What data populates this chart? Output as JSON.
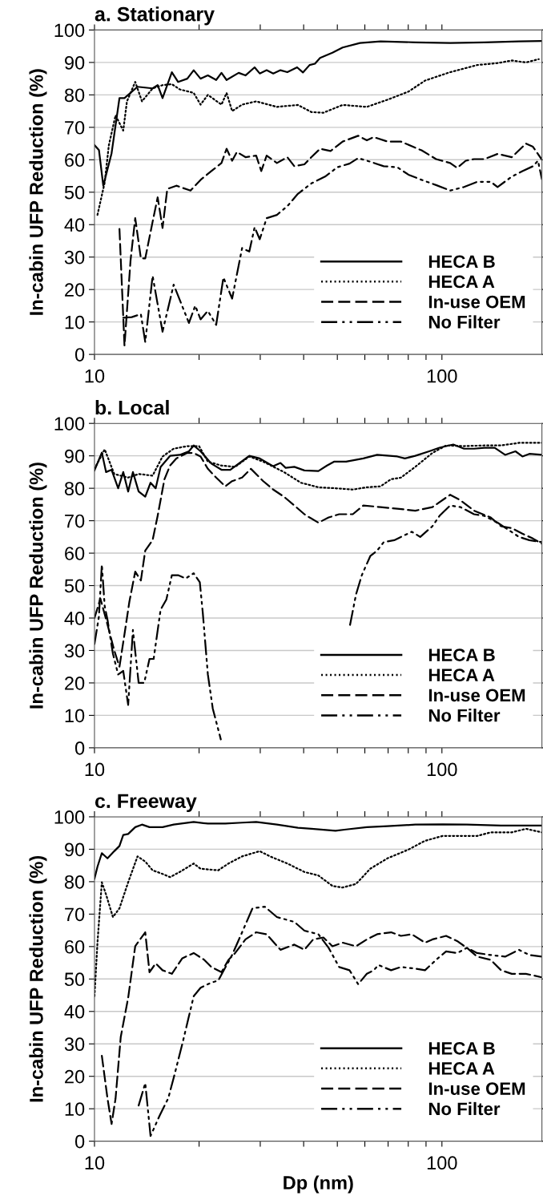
{
  "chart_data": [
    {
      "type": "line",
      "title": "a. Stationary",
      "ylabel": "In-cabin UFP Reduction (%)",
      "log": "x",
      "xlim": [
        10,
        194
      ],
      "ylim": [
        0,
        100
      ],
      "xticks": [
        10,
        {
          "value": 20,
          "label": null
        },
        {
          "value": 30,
          "label": null
        },
        {
          "value": 40,
          "label": null
        },
        {
          "value": 50,
          "label": null
        },
        {
          "value": 60,
          "label": null
        },
        {
          "value": 70,
          "label": null
        },
        {
          "value": 80,
          "label": null
        },
        {
          "value": 90,
          "label": null
        },
        100
      ],
      "yticks": [
        0,
        10,
        20,
        30,
        40,
        50,
        60,
        70,
        80,
        90,
        100
      ],
      "grid": "y",
      "legend": "bottom right",
      "series": [
        {
          "name": "HECA B",
          "color": "#000000",
          "line_style": "solid",
          "x": [
            10.0,
            10.3,
            10.6,
            11.2,
            11.8,
            12.2,
            13.3,
            14.7,
            15.2,
            15.7,
            16.7,
            17.4,
            18.5,
            19.3,
            20.2,
            21.2,
            22.4,
            23.2,
            24.0,
            26.0,
            27.2,
            28.9,
            29.9,
            31.3,
            32.7,
            34.3,
            35.9,
            38.3,
            39.8,
            41.6,
            43.1,
            44.6,
            48.4,
            51.8,
            58.1,
            66.6,
            83.8,
            105.6,
            132.5,
            166.6,
            194
          ],
          "values": [
            64.5,
            63,
            52,
            62,
            79,
            79,
            82.5,
            82,
            83,
            79,
            87,
            84,
            85,
            87.6,
            85,
            86,
            84.6,
            86.8,
            84.6,
            86.8,
            86,
            88.5,
            86.6,
            87.6,
            86.6,
            87.6,
            87,
            88.5,
            86.9,
            89.2,
            89.6,
            91.4,
            93,
            94.6,
            96,
            96.5,
            96.2,
            96,
            96.2,
            96.5,
            96.6
          ]
        },
        {
          "name": "HECA A",
          "color": "#000000",
          "line_style": "dotted",
          "x": [
            10.2,
            10.7,
            11.0,
            11.5,
            12.1,
            12.4,
            13.1,
            13.7,
            14.7,
            15.7,
            16.7,
            17.6,
            19.3,
            20.2,
            21.2,
            23.2,
            24.0,
            24.9,
            26.6,
            29.2,
            33.5,
            38.5,
            42.1,
            45.6,
            51.8,
            60.8,
            69.7,
            80.1,
            89.4,
            105.6,
            126.3,
            144.6,
            158.9,
            174.5,
            190
          ],
          "values": [
            43,
            53,
            64.5,
            73.7,
            69,
            78,
            84,
            78,
            82,
            83,
            83.3,
            81.7,
            80.6,
            77,
            80,
            77,
            80.6,
            75,
            77,
            78,
            76.3,
            76.9,
            74.7,
            74.5,
            76.9,
            76.3,
            78.5,
            81,
            84.4,
            87,
            89.2,
            89.8,
            90.6,
            90,
            91
          ]
        },
        {
          "name": "In-use OEM",
          "color": "#000000",
          "line_style": "dashed",
          "x": [
            11.8,
            12.2,
            12.7,
            13.1,
            13.6,
            14.0,
            14.7,
            15.2,
            15.7,
            16.2,
            17.2,
            18.9,
            20.2,
            21.7,
            23.2,
            24.0,
            24.9,
            25.7,
            27.2,
            29.2,
            30.2,
            31.3,
            33.5,
            35.9,
            37.6,
            40.2,
            42.1,
            44.6,
            47.8,
            51.8,
            57.4,
            60.8,
            63.6,
            69.7,
            76.2,
            87.4,
            96.2,
            105.6,
            110.6,
            117.1,
            123.7,
            132.5,
            144.6,
            158.9,
            174.5,
            182.8,
            194
          ],
          "values": [
            38.7,
            2.7,
            29,
            42,
            29.6,
            29.6,
            40.9,
            48.4,
            39,
            51,
            52,
            50.5,
            53.8,
            56.5,
            59,
            63.4,
            59.7,
            62.4,
            60.8,
            61.3,
            56.5,
            61.3,
            59,
            60.8,
            58,
            58.6,
            60.8,
            63.4,
            62.7,
            65.6,
            67.4,
            66,
            67,
            65.6,
            65.6,
            62.9,
            60.2,
            59,
            57.5,
            59.7,
            60.2,
            60.2,
            61.8,
            60.8,
            65,
            64,
            60
          ]
        },
        {
          "name": "No Filter",
          "color": "#000000",
          "line_style": "dashdotdot",
          "x": [
            12.1,
            12.8,
            13.6,
            14.0,
            14.7,
            15.7,
            16.9,
            18.7,
            19.5,
            20.2,
            21.2,
            22.4,
            23.5,
            24.9,
            26.6,
            27.9,
            28.9,
            29.9,
            31.3,
            33.5,
            35.9,
            38.5,
            42.1,
            46.1,
            50.0,
            54.2,
            57.4,
            62.2,
            68.0,
            74.4,
            80.1,
            87.4,
            96.2,
            105.6,
            115.8,
            126.3,
            138.2,
            144.6,
            158.9,
            170.5,
            182.8,
            189,
            194
          ],
          "values": [
            11.3,
            11.5,
            12.4,
            3.8,
            24.2,
            7,
            21.5,
            9.7,
            15,
            10.8,
            13.4,
            9.1,
            23.7,
            17.2,
            32.8,
            31.7,
            39.2,
            35.5,
            42,
            43,
            45.7,
            49.5,
            52.7,
            54.8,
            57.7,
            58.8,
            60.5,
            59.4,
            58,
            57.7,
            55.4,
            53.8,
            52.2,
            50.5,
            51.6,
            53.2,
            53.2,
            51.6,
            54.8,
            56.5,
            58,
            59.7,
            54
          ]
        }
      ]
    },
    {
      "type": "line",
      "title": "b. Local",
      "ylabel": "In-cabin UFP Reduction (%)",
      "log": "x",
      "xlim": [
        10,
        194
      ],
      "ylim": [
        0,
        100
      ],
      "xticks": [
        10,
        {
          "value": 20,
          "label": null
        },
        {
          "value": 30,
          "label": null
        },
        {
          "value": 40,
          "label": null
        },
        {
          "value": 50,
          "label": null
        },
        {
          "value": 60,
          "label": null
        },
        {
          "value": 70,
          "label": null
        },
        {
          "value": 80,
          "label": null
        },
        {
          "value": 90,
          "label": null
        },
        100
      ],
      "yticks": [
        0,
        10,
        20,
        30,
        40,
        50,
        60,
        70,
        80,
        90,
        100
      ],
      "grid": "y",
      "legend": "bottom right",
      "series": [
        {
          "name": "HECA B",
          "color": "#000000",
          "line_style": "solid",
          "x": [
            10.0,
            10.5,
            10.8,
            11.2,
            11.7,
            12.1,
            12.5,
            12.9,
            13.4,
            14.0,
            14.5,
            15.0,
            15.5,
            16.5,
            17.6,
            18.7,
            19.3,
            20.2,
            21.7,
            23.2,
            24.6,
            26.0,
            27.9,
            29.9,
            32.7,
            34.3,
            35.5,
            37.6,
            40.2,
            44.1,
            46.7,
            48.9,
            53.0,
            59.4,
            65.1,
            74.4,
            78.2,
            83.8,
            91.9,
            98.4,
            107.8,
            115.8,
            123.7,
            132.5,
            141.9,
            152,
            162.8,
            170.5,
            178.5,
            194
          ],
          "values": [
            85.5,
            91,
            85,
            85.7,
            80,
            85,
            79,
            85,
            79,
            77.4,
            81.7,
            80,
            86.6,
            90,
            90.3,
            91.4,
            93.2,
            91.4,
            87.6,
            85.7,
            85.7,
            87.6,
            90,
            89.2,
            86.8,
            87.8,
            86.3,
            86.6,
            85.5,
            85.3,
            87,
            88.2,
            88.2,
            89.2,
            90.3,
            89.8,
            89.2,
            90,
            91.4,
            92.5,
            93.5,
            92.2,
            92.2,
            92.5,
            92.5,
            90.3,
            91.4,
            89.8,
            90.6,
            90.3
          ]
        },
        {
          "name": "HECA A",
          "color": "#000000",
          "line_style": "dotted",
          "x": [
            10.0,
            10.7,
            11.4,
            12.5,
            13.4,
            14.7,
            15.7,
            16.9,
            18.5,
            20.0,
            21.2,
            23.2,
            25.4,
            27.9,
            30.6,
            35.1,
            39.3,
            44.1,
            49.4,
            55.4,
            60.8,
            66.6,
            71.4,
            76.2,
            83.8,
            93.9,
            102.8,
            115.8,
            132.5,
            148,
            166.6,
            194
          ],
          "values": [
            86,
            92,
            84.4,
            83.3,
            84.4,
            83.9,
            89.8,
            92.2,
            93,
            93,
            88.2,
            87,
            86.6,
            89.8,
            88.2,
            85,
            81.7,
            80.3,
            80,
            79.6,
            80.3,
            80.6,
            82.8,
            83.3,
            86.6,
            90.9,
            93.2,
            93,
            93.2,
            93.2,
            94,
            94
          ]
        },
        {
          "name": "In-use OEM",
          "color": "#000000",
          "line_style": "dashed",
          "x": [
            10.0,
            10.4,
            10.9,
            11.4,
            11.8,
            12.2,
            12.6,
            13.1,
            13.6,
            14.0,
            14.7,
            15.2,
            15.9,
            16.5,
            17.2,
            18.5,
            19.3,
            20.2,
            21.2,
            22.4,
            23.8,
            24.9,
            26.6,
            28.2,
            30.6,
            32.7,
            35.1,
            37.6,
            40.2,
            41.6,
            44.1,
            47.2,
            50.6,
            55.4,
            59.4,
            66.6,
            74.4,
            83.8,
            93.9,
            105.6,
            113.1,
            123.7,
            138.2,
            148,
            158.9,
            170.5,
            182.8,
            194
          ],
          "values": [
            40,
            46,
            38,
            30,
            25,
            35,
            45,
            54.3,
            51.6,
            60.8,
            64,
            71.5,
            82.8,
            87,
            89.2,
            90.9,
            90.9,
            89.8,
            86,
            83.3,
            80.6,
            82.2,
            83.3,
            86,
            82.2,
            79.6,
            77.4,
            74.7,
            72,
            71,
            69.4,
            71,
            72,
            72,
            74.7,
            74.2,
            73.7,
            73.1,
            74.2,
            78,
            76.3,
            73.1,
            71,
            68.3,
            67.7,
            66,
            64.5,
            62.9
          ]
        },
        {
          "name": "No Filter",
          "color": "#000000",
          "line_style": "dashdotdot",
          "x": [
            10.0,
            10.3,
            10.5,
            10.7,
            10.9,
            11.3,
            11.7,
            12.1,
            12.5,
            12.9,
            13.4,
            13.9,
            14.4,
            14.8,
            15.5,
            16.1,
            16.7,
            17.4,
            18.3,
            19.3,
            20.1,
            20.5,
            21.2,
            21.9,
            23.1,
            35,
            54.4,
            56.6,
            58.8,
            62.2,
            65.1,
            68.0,
            72.9,
            81.9,
            86.6,
            93.9,
            98.4,
            105.6,
            113.1,
            123.7,
            132.5,
            144.6,
            155.3,
            166.6,
            178.5,
            194
          ],
          "values": [
            32,
            40.5,
            56.5,
            43.7,
            39.5,
            29,
            22.6,
            23.7,
            13.2,
            36.3,
            20,
            20,
            27.4,
            27.4,
            42.6,
            45.7,
            53.2,
            53.2,
            52.2,
            53.8,
            51,
            41.6,
            22.6,
            12.1,
            2.6,
            null,
            37.9,
            47.3,
            53.2,
            59.1,
            60.8,
            63.4,
            64,
            66.6,
            65,
            68.3,
            71.5,
            74.7,
            74.2,
            72,
            71.5,
            69.4,
            67.2,
            65,
            64,
            63.4
          ]
        }
      ]
    },
    {
      "type": "line",
      "title": "c. Freeway",
      "ylabel": "In-cabin UFP Reduction (%)",
      "xlabel": "Dp (nm)",
      "log": "x",
      "xlim": [
        10,
        194
      ],
      "ylim": [
        0,
        100
      ],
      "xticks": [
        10,
        {
          "value": 20,
          "label": null
        },
        {
          "value": 30,
          "label": null
        },
        {
          "value": 40,
          "label": null
        },
        {
          "value": 50,
          "label": null
        },
        {
          "value": 60,
          "label": null
        },
        {
          "value": 70,
          "label": null
        },
        {
          "value": 80,
          "label": null
        },
        {
          "value": 90,
          "label": null
        },
        100
      ],
      "yticks": [
        0,
        10,
        20,
        30,
        40,
        50,
        60,
        70,
        80,
        90,
        100
      ],
      "grid": "y",
      "legend": "bottom right",
      "series": [
        {
          "name": "HECA B",
          "color": "#000000",
          "line_style": "solid",
          "x": [
            10.0,
            10.2,
            10.5,
            10.9,
            11.4,
            11.8,
            12.1,
            12.5,
            13.1,
            13.7,
            14.4,
            15.7,
            16.9,
            19.3,
            21.2,
            23.8,
            26.6,
            29.2,
            33.5,
            38.5,
            42.1,
            49.4,
            53.0,
            60.8,
            69.7,
            83.8,
            100.5,
            118,
            148,
            194
          ],
          "values": [
            80.9,
            84.6,
            88.8,
            87.2,
            89.4,
            91,
            94.4,
            94.7,
            96.8,
            97.6,
            96.8,
            96.8,
            97.6,
            98.4,
            97.9,
            97.9,
            98.2,
            98.4,
            97.6,
            96.6,
            96.3,
            95.7,
            96.1,
            96.8,
            97.1,
            97.6,
            97.7,
            97.6,
            97.3,
            97.3
          ]
        },
        {
          "name": "HECA A",
          "color": "#000000",
          "line_style": "dotted",
          "x": [
            10.0,
            10.2,
            10.5,
            10.8,
            11.3,
            11.8,
            12.5,
            13.3,
            14.0,
            14.7,
            15.7,
            16.5,
            17.6,
            19.3,
            20.2,
            22.7,
            24.3,
            26.6,
            29.9,
            32.0,
            35.9,
            40.2,
            44.1,
            48.4,
            51.8,
            56.6,
            62.2,
            69.7,
            80.1,
            89.4,
            100.5,
            113.1,
            126.3,
            138.2,
            158.9,
            174.5,
            194
          ],
          "values": [
            44.7,
            61.2,
            79.8,
            76,
            69.1,
            71.8,
            79.8,
            87.8,
            86.2,
            83.5,
            82.4,
            81.4,
            83,
            85.6,
            84,
            83.5,
            85.6,
            87.8,
            89.4,
            87.8,
            85.6,
            83,
            81.9,
            78.7,
            78.2,
            79.3,
            84,
            87.2,
            89.9,
            92.6,
            94.1,
            94.1,
            94.1,
            95.2,
            95.2,
            96.3,
            95.2
          ]
        },
        {
          "name": "In-use OEM",
          "color": "#000000",
          "line_style": "dashed",
          "x": [
            10.5,
            10.9,
            11.2,
            11.5,
            11.9,
            12.5,
            13.1,
            14.0,
            14.4,
            15.0,
            15.7,
            16.7,
            17.9,
            19.3,
            20.7,
            21.7,
            23.2,
            24.3,
            25.4,
            27.2,
            29.2,
            31.3,
            34.3,
            37.6,
            40.2,
            42.6,
            45.6,
            48.4,
            51.8,
            56.6,
            60.8,
            65.1,
            71.4,
            76.2,
            81.9,
            89.4,
            93.9,
            102.8,
            110.6,
            118,
            126.3,
            138.2,
            148,
            158.9,
            174.5,
            194
          ],
          "values": [
            26.3,
            13.2,
            5.3,
            13.2,
            32.1,
            44.2,
            60.1,
            64.4,
            52.1,
            54.8,
            52.7,
            51.6,
            56.4,
            58,
            55.9,
            53.7,
            52.1,
            55.9,
            58,
            62.2,
            64.4,
            63.8,
            59,
            60.6,
            59,
            62.2,
            62.8,
            60.1,
            61.2,
            60.1,
            62.2,
            63.8,
            64.4,
            63.3,
            63.8,
            61.2,
            62.2,
            63.3,
            61.7,
            59.6,
            56.9,
            55.9,
            52.7,
            51.6,
            51.6,
            50.5
          ]
        },
        {
          "name": "No Filter",
          "color": "#000000",
          "line_style": "dashdotdot",
          "x": [
            13.4,
            14.0,
            14.5,
            15.4,
            16.3,
            16.9,
            17.9,
            19.3,
            20.2,
            21.7,
            22.7,
            24.9,
            26.6,
            28.5,
            30.9,
            33.5,
            37.6,
            40.2,
            44.1,
            47.2,
            50.6,
            54.2,
            57.4,
            60.8,
            63.6,
            65.7,
            71.4,
            76.2,
            83.8,
            89.4,
            96.2,
            102.8,
            110.6,
            118,
            126.3,
            138.2,
            152,
            166.6,
            178.5,
            194
          ],
          "values": [
            11,
            17.9,
            1.6,
            7.9,
            13.2,
            19.5,
            30,
            44.7,
            47.3,
            48.9,
            49.5,
            57.4,
            64.4,
            71.8,
            72.3,
            69.1,
            67.6,
            64.9,
            63.8,
            59.6,
            53.7,
            52.7,
            48.4,
            51.6,
            52.7,
            54.3,
            52.7,
            53.7,
            53.2,
            52.7,
            55.9,
            58.5,
            58,
            59.6,
            58,
            57.4,
            56.9,
            59,
            57.4,
            56.9
          ]
        }
      ]
    }
  ]
}
